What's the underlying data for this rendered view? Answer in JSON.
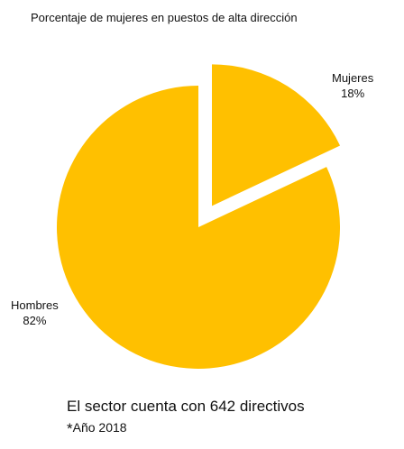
{
  "chart_data": {
    "type": "pie",
    "title": "Porcentaje de mujeres en puestos de alta dirección",
    "slices": [
      {
        "label": "Mujeres",
        "value": 18,
        "value_label": "18%",
        "exploded": true,
        "color": "#FFC000"
      },
      {
        "label": "Hombres",
        "value": 82,
        "value_label": "82%",
        "exploded": false,
        "color": "#FFC000"
      }
    ],
    "legend": "none"
  },
  "footnote": {
    "main": "El sector cuenta con 642 directivos",
    "asterisk": "*",
    "year": "Año 2018"
  }
}
